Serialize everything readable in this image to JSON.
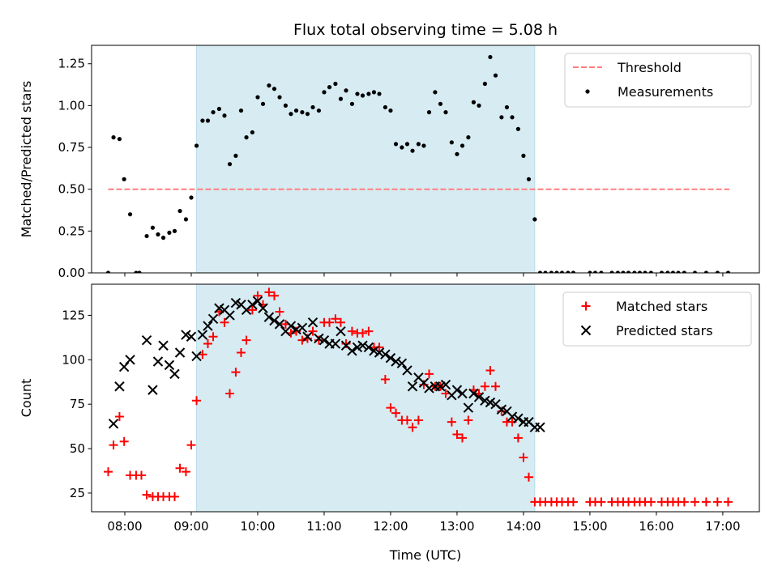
{
  "title": "Flux total observing time = 5.08 h",
  "chart_data": [
    {
      "id": "ratio",
      "type": "scatter",
      "ylabel": "Matched/Predicted stars",
      "xlim": [
        7.5,
        17.55
      ],
      "ylim": [
        0,
        1.36
      ],
      "yticks": [
        0.0,
        0.25,
        0.5,
        0.75,
        1.0,
        1.25
      ],
      "ytick_labels": [
        "0.00",
        "0.25",
        "0.50",
        "0.75",
        "1.00",
        "1.25"
      ],
      "xticks": [
        8,
        9,
        10,
        11,
        12,
        13,
        14,
        15,
        16,
        17
      ],
      "shaded_span": [
        9.08,
        14.17
      ],
      "shade_color": "#add8e6",
      "legend": {
        "loc": "upper-right",
        "entries": [
          "Threshold",
          "Measurements"
        ]
      },
      "threshold": {
        "name": "Threshold",
        "value": 0.5,
        "x_range": [
          7.75,
          17.1
        ],
        "color": "#ff7f7f"
      },
      "series": [
        {
          "name": "Measurements",
          "marker": "dot",
          "color": "#000000",
          "x": [
            7.75,
            7.83,
            7.92,
            7.99,
            8.08,
            8.17,
            8.22,
            8.33,
            8.42,
            8.5,
            8.58,
            8.67,
            8.75,
            8.83,
            8.92,
            9.0,
            9.08,
            9.17,
            9.25,
            9.33,
            9.42,
            9.5,
            9.58,
            9.67,
            9.75,
            9.83,
            9.92,
            10.0,
            10.08,
            10.17,
            10.25,
            10.33,
            10.42,
            10.5,
            10.58,
            10.67,
            10.75,
            10.83,
            10.92,
            11.0,
            11.08,
            11.17,
            11.25,
            11.33,
            11.42,
            11.5,
            11.58,
            11.67,
            11.75,
            11.83,
            11.92,
            12.0,
            12.08,
            12.17,
            12.25,
            12.33,
            12.42,
            12.5,
            12.58,
            12.67,
            12.75,
            12.83,
            12.92,
            13.0,
            13.08,
            13.17,
            13.25,
            13.33,
            13.42,
            13.5,
            13.58,
            13.67,
            13.75,
            13.83,
            13.92,
            14.0,
            14.08,
            14.17,
            14.25,
            14.33,
            14.42,
            14.5,
            14.58,
            14.67,
            14.75,
            15.0,
            15.08,
            15.17,
            15.33,
            15.42,
            15.5,
            15.58,
            15.67,
            15.75,
            15.83,
            15.92,
            16.08,
            16.17,
            16.25,
            16.33,
            16.42,
            16.58,
            16.75,
            16.92,
            17.08
          ],
          "y": [
            0.0,
            0.81,
            0.8,
            0.56,
            0.35,
            0.0,
            0.0,
            0.22,
            0.27,
            0.23,
            0.21,
            0.24,
            0.25,
            0.37,
            0.32,
            0.45,
            0.76,
            0.91,
            0.91,
            0.96,
            0.98,
            0.94,
            0.65,
            0.7,
            0.97,
            0.81,
            0.84,
            1.05,
            1.01,
            1.12,
            1.1,
            1.05,
            1.0,
            0.95,
            0.97,
            0.96,
            0.95,
            0.99,
            0.97,
            1.08,
            1.11,
            1.13,
            1.04,
            1.09,
            1.01,
            1.07,
            1.06,
            1.07,
            1.08,
            1.07,
            0.99,
            0.97,
            0.77,
            0.75,
            0.77,
            0.73,
            0.77,
            0.76,
            0.96,
            1.08,
            1.01,
            0.96,
            0.78,
            0.71,
            0.76,
            0.81,
            1.02,
            1.0,
            1.13,
            1.29,
            1.18,
            0.93,
            0.99,
            0.93,
            0.86,
            0.7,
            0.56,
            0.32,
            0.0,
            0.0,
            0.0,
            0.0,
            0.0,
            0.0,
            0.0,
            0.0,
            0.0,
            0.0,
            0.0,
            0.0,
            0.0,
            0.0,
            0.0,
            0.0,
            0.0,
            0.0,
            0.0,
            0.0,
            0.0,
            0.0,
            0.0,
            0.0,
            0.0,
            0.0,
            0.0
          ]
        }
      ]
    },
    {
      "id": "counts",
      "type": "scatter",
      "ylabel": "Count",
      "xlabel": "Time (UTC)",
      "xlim": [
        7.5,
        17.55
      ],
      "ylim": [
        14.5,
        142.5
      ],
      "yticks": [
        25,
        50,
        75,
        100,
        125
      ],
      "ytick_labels": [
        "25",
        "50",
        "75",
        "100",
        "125"
      ],
      "xticks": [
        8,
        9,
        10,
        11,
        12,
        13,
        14,
        15,
        16,
        17
      ],
      "xtick_labels": [
        "08:00",
        "09:00",
        "10:00",
        "11:00",
        "12:00",
        "13:00",
        "14:00",
        "15:00",
        "16:00",
        "17:00"
      ],
      "shaded_span": [
        9.08,
        14.17
      ],
      "shade_color": "#add8e6",
      "legend": {
        "loc": "upper-right",
        "entries": [
          "Matched stars",
          "Predicted stars"
        ]
      },
      "series": [
        {
          "name": "Matched stars",
          "marker": "plus",
          "color": "#ff0000",
          "x": [
            7.75,
            7.83,
            7.92,
            7.99,
            8.08,
            8.17,
            8.25,
            8.33,
            8.42,
            8.5,
            8.58,
            8.67,
            8.75,
            8.83,
            8.92,
            9.0,
            9.08,
            9.17,
            9.25,
            9.33,
            9.42,
            9.5,
            9.58,
            9.67,
            9.75,
            9.83,
            9.92,
            10.0,
            10.08,
            10.17,
            10.25,
            10.33,
            10.42,
            10.5,
            10.58,
            10.67,
            10.75,
            10.83,
            10.92,
            11.0,
            11.08,
            11.17,
            11.25,
            11.33,
            11.42,
            11.5,
            11.58,
            11.67,
            11.75,
            11.83,
            11.92,
            12.0,
            12.08,
            12.17,
            12.25,
            12.33,
            12.42,
            12.5,
            12.58,
            12.67,
            12.75,
            12.83,
            12.92,
            13.0,
            13.08,
            13.17,
            13.25,
            13.33,
            13.42,
            13.5,
            13.58,
            13.67,
            13.75,
            13.83,
            13.92,
            14.0,
            14.08,
            14.17,
            14.25,
            14.33,
            14.42,
            14.5,
            14.58,
            14.67,
            14.75,
            15.0,
            15.08,
            15.17,
            15.33,
            15.42,
            15.5,
            15.58,
            15.67,
            15.75,
            15.83,
            15.92,
            16.08,
            16.17,
            16.25,
            16.33,
            16.42,
            16.58,
            16.75,
            16.92,
            17.08
          ],
          "y": [
            37,
            52,
            68,
            54,
            35,
            35,
            35,
            24,
            23,
            23,
            23,
            23,
            23,
            39,
            37,
            52,
            77,
            103,
            109,
            113,
            127,
            121,
            81,
            93,
            104,
            111,
            128,
            136,
            131,
            138,
            136,
            127,
            120,
            115,
            116,
            111,
            112,
            116,
            111,
            121,
            121,
            123,
            121,
            109,
            116,
            115,
            115,
            116,
            107,
            107,
            89,
            73,
            70,
            66,
            66,
            62,
            66,
            86,
            92,
            85,
            85,
            81,
            65,
            58,
            56,
            66,
            83,
            81,
            85,
            94,
            85,
            71,
            65,
            65,
            56,
            45,
            34,
            20,
            20,
            20,
            20,
            20,
            20,
            20,
            20,
            20,
            20,
            20,
            20,
            20,
            20,
            20,
            20,
            20,
            20,
            20,
            20,
            20,
            20,
            20,
            20,
            20,
            20,
            20,
            20
          ]
        },
        {
          "name": "Predicted stars",
          "marker": "x",
          "color": "#000000",
          "x": [
            7.83,
            7.92,
            7.99,
            8.08,
            8.33,
            8.42,
            8.5,
            8.58,
            8.67,
            8.75,
            8.83,
            8.92,
            9.0,
            9.08,
            9.17,
            9.25,
            9.33,
            9.42,
            9.5,
            9.58,
            9.67,
            9.75,
            9.83,
            9.92,
            10.0,
            10.08,
            10.17,
            10.25,
            10.33,
            10.42,
            10.5,
            10.58,
            10.67,
            10.75,
            10.83,
            10.92,
            11.0,
            11.08,
            11.17,
            11.25,
            11.33,
            11.42,
            11.5,
            11.58,
            11.67,
            11.75,
            11.83,
            11.92,
            12.0,
            12.08,
            12.17,
            12.25,
            12.33,
            12.42,
            12.5,
            12.58,
            12.67,
            12.75,
            12.83,
            12.92,
            13.0,
            13.08,
            13.17,
            13.25,
            13.33,
            13.42,
            13.5,
            13.58,
            13.67,
            13.75,
            13.83,
            13.92,
            14.0,
            14.08,
            14.17,
            14.25
          ],
          "y": [
            64,
            85,
            96,
            100,
            111,
            83,
            99,
            108,
            97,
            92,
            104,
            114,
            113,
            102,
            114,
            119,
            123,
            129,
            128,
            125,
            132,
            131,
            128,
            131,
            133,
            129,
            124,
            122,
            120,
            116,
            119,
            117,
            118,
            113,
            121,
            112,
            111,
            109,
            109,
            116,
            108,
            105,
            107,
            108,
            107,
            105,
            104,
            103,
            101,
            99,
            98,
            94,
            85,
            90,
            87,
            84,
            85,
            85,
            86,
            80,
            83,
            81,
            73,
            81,
            79,
            77,
            76,
            75,
            72,
            71,
            68,
            67,
            65,
            65,
            62,
            62
          ]
        }
      ]
    }
  ]
}
